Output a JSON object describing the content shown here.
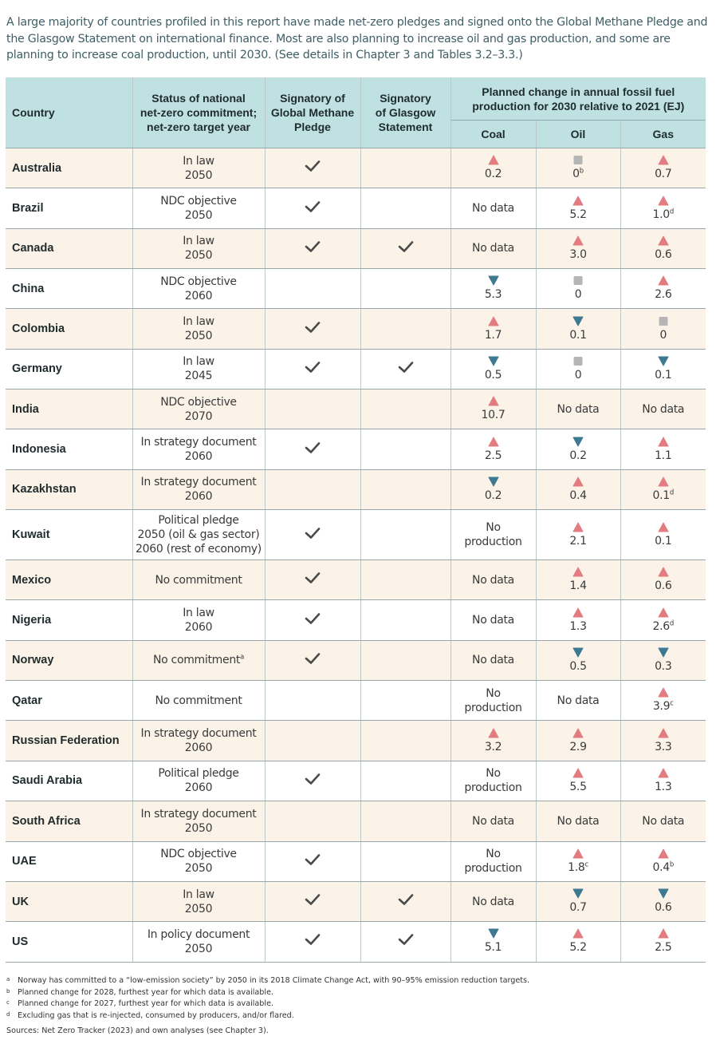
{
  "intro": "A large majority of countries profiled in this report have made net-zero pledges and signed onto the Global Methane Pledge and the Glasgow Statement on international finance. Most are also planning to increase oil and gas production, and some are planning to increase coal production, until 2030. (See details in Chapter 3 and Tables 3.2–3.3.)",
  "headers": {
    "country": "Country",
    "status": [
      "Status of national",
      "net-zero commitment;",
      "net-zero target year"
    ],
    "methane": [
      "Signatory of",
      "Global Methane",
      "Pledge"
    ],
    "glasgow": [
      "Signatory",
      "of Glasgow",
      "Statement"
    ],
    "planned": [
      "Planned change in annual fossil fuel",
      "production for 2030 relative to 2021 (EJ)"
    ],
    "coal": "Coal",
    "oil": "Oil",
    "gas": "Gas"
  },
  "colors": {
    "header_bg": "#bfe1e1",
    "row_alt": "#fbf3e8",
    "increase": "#e27c80",
    "decrease": "#3d7a92",
    "nochange": "#b5b5b5",
    "check": "#4a4a4a"
  },
  "rows": [
    {
      "country": "Australia",
      "status": [
        "In law",
        "2050"
      ],
      "methane": true,
      "glasgow": false,
      "coal": {
        "dir": "up",
        "val": "0.2",
        "sup": ""
      },
      "oil": {
        "dir": "flat",
        "val": "0",
        "sup": "b"
      },
      "gas": {
        "dir": "up",
        "val": "0.7",
        "sup": ""
      }
    },
    {
      "country": "Brazil",
      "status": [
        "NDC objective",
        "2050"
      ],
      "methane": true,
      "glasgow": false,
      "coal": {
        "dir": "none",
        "val": "No data",
        "sup": ""
      },
      "oil": {
        "dir": "up",
        "val": "5.2",
        "sup": ""
      },
      "gas": {
        "dir": "up",
        "val": "1.0",
        "sup": "d"
      }
    },
    {
      "country": "Canada",
      "status": [
        "In law",
        "2050"
      ],
      "methane": true,
      "glasgow": true,
      "coal": {
        "dir": "none",
        "val": "No data",
        "sup": ""
      },
      "oil": {
        "dir": "up",
        "val": "3.0",
        "sup": ""
      },
      "gas": {
        "dir": "up",
        "val": "0.6",
        "sup": ""
      }
    },
    {
      "country": "China",
      "status": [
        "NDC objective",
        "2060"
      ],
      "methane": false,
      "glasgow": false,
      "coal": {
        "dir": "down",
        "val": "5.3",
        "sup": ""
      },
      "oil": {
        "dir": "flat",
        "val": "0",
        "sup": ""
      },
      "gas": {
        "dir": "up",
        "val": "2.6",
        "sup": ""
      }
    },
    {
      "country": "Colombia",
      "status": [
        "In law",
        "2050"
      ],
      "methane": true,
      "glasgow": false,
      "coal": {
        "dir": "up",
        "val": "1.7",
        "sup": ""
      },
      "oil": {
        "dir": "down",
        "val": "0.1",
        "sup": ""
      },
      "gas": {
        "dir": "flat",
        "val": "0",
        "sup": ""
      }
    },
    {
      "country": "Germany",
      "status": [
        "In law",
        "2045"
      ],
      "methane": true,
      "glasgow": true,
      "coal": {
        "dir": "down",
        "val": "0.5",
        "sup": ""
      },
      "oil": {
        "dir": "flat",
        "val": "0",
        "sup": ""
      },
      "gas": {
        "dir": "down",
        "val": "0.1",
        "sup": ""
      }
    },
    {
      "country": "India",
      "status": [
        "NDC objective",
        "2070"
      ],
      "methane": false,
      "glasgow": false,
      "coal": {
        "dir": "up",
        "val": "10.7",
        "sup": ""
      },
      "oil": {
        "dir": "none",
        "val": "No data",
        "sup": ""
      },
      "gas": {
        "dir": "none",
        "val": "No data",
        "sup": ""
      }
    },
    {
      "country": "Indonesia",
      "status": [
        "In strategy document",
        "2060"
      ],
      "methane": true,
      "glasgow": false,
      "coal": {
        "dir": "up",
        "val": "2.5",
        "sup": ""
      },
      "oil": {
        "dir": "down",
        "val": "0.2",
        "sup": ""
      },
      "gas": {
        "dir": "up",
        "val": "1.1",
        "sup": ""
      }
    },
    {
      "country": "Kazakhstan",
      "status": [
        "In strategy document",
        "2060"
      ],
      "methane": false,
      "glasgow": false,
      "coal": {
        "dir": "down",
        "val": "0.2",
        "sup": ""
      },
      "oil": {
        "dir": "up",
        "val": "0.4",
        "sup": ""
      },
      "gas": {
        "dir": "up",
        "val": "0.1",
        "sup": "d"
      }
    },
    {
      "country": "Kuwait",
      "status": [
        "Political pledge",
        "2050 (oil & gas sector)",
        "2060 (rest of economy)"
      ],
      "methane": true,
      "glasgow": false,
      "tall": true,
      "coal": {
        "dir": "none",
        "val": "No production",
        "sup": ""
      },
      "oil": {
        "dir": "up",
        "val": "2.1",
        "sup": ""
      },
      "gas": {
        "dir": "up",
        "val": "0.1",
        "sup": ""
      }
    },
    {
      "country": "Mexico",
      "status": [
        "No commitment"
      ],
      "methane": true,
      "glasgow": false,
      "coal": {
        "dir": "none",
        "val": "No data",
        "sup": ""
      },
      "oil": {
        "dir": "up",
        "val": "1.4",
        "sup": ""
      },
      "gas": {
        "dir": "up",
        "val": "0.6",
        "sup": ""
      }
    },
    {
      "country": "Nigeria",
      "status": [
        "In law",
        "2060"
      ],
      "methane": true,
      "glasgow": false,
      "coal": {
        "dir": "none",
        "val": "No data",
        "sup": ""
      },
      "oil": {
        "dir": "up",
        "val": "1.3",
        "sup": ""
      },
      "gas": {
        "dir": "up",
        "val": "2.6",
        "sup": "d"
      }
    },
    {
      "country": "Norway",
      "status": [
        "No commitment"
      ],
      "status_sup": "a",
      "methane": true,
      "glasgow": false,
      "coal": {
        "dir": "none",
        "val": "No data",
        "sup": ""
      },
      "oil": {
        "dir": "down",
        "val": "0.5",
        "sup": ""
      },
      "gas": {
        "dir": "down",
        "val": "0.3",
        "sup": ""
      }
    },
    {
      "country": "Qatar",
      "status": [
        "No commitment"
      ],
      "methane": false,
      "glasgow": false,
      "coal": {
        "dir": "none",
        "val": "No production",
        "sup": ""
      },
      "oil": {
        "dir": "none",
        "val": "No data",
        "sup": ""
      },
      "gas": {
        "dir": "up",
        "val": "3.9",
        "sup": "c"
      }
    },
    {
      "country": "Russian Federation",
      "status": [
        "In strategy document",
        "2060"
      ],
      "methane": false,
      "glasgow": false,
      "coal": {
        "dir": "up",
        "val": "3.2",
        "sup": ""
      },
      "oil": {
        "dir": "up",
        "val": "2.9",
        "sup": ""
      },
      "gas": {
        "dir": "up",
        "val": "3.3",
        "sup": ""
      }
    },
    {
      "country": "Saudi Arabia",
      "status": [
        "Political pledge",
        "2060"
      ],
      "methane": true,
      "glasgow": false,
      "coal": {
        "dir": "none",
        "val": "No production",
        "sup": ""
      },
      "oil": {
        "dir": "up",
        "val": "5.5",
        "sup": ""
      },
      "gas": {
        "dir": "up",
        "val": "1.3",
        "sup": ""
      }
    },
    {
      "country": "South Africa",
      "status": [
        "In strategy document",
        "2050"
      ],
      "methane": false,
      "glasgow": false,
      "coal": {
        "dir": "none",
        "val": "No data",
        "sup": ""
      },
      "oil": {
        "dir": "none",
        "val": "No data",
        "sup": ""
      },
      "gas": {
        "dir": "none",
        "val": "No data",
        "sup": ""
      }
    },
    {
      "country": "UAE",
      "status": [
        "NDC objective",
        "2050"
      ],
      "methane": true,
      "glasgow": false,
      "coal": {
        "dir": "none",
        "val": "No production",
        "sup": ""
      },
      "oil": {
        "dir": "up",
        "val": "1.8",
        "sup": "c"
      },
      "gas": {
        "dir": "up",
        "val": "0.4",
        "sup": "b"
      }
    },
    {
      "country": "UK",
      "status": [
        "In law",
        "2050"
      ],
      "methane": true,
      "glasgow": true,
      "coal": {
        "dir": "none",
        "val": "No data",
        "sup": ""
      },
      "oil": {
        "dir": "down",
        "val": "0.7",
        "sup": ""
      },
      "gas": {
        "dir": "down",
        "val": "0.6",
        "sup": ""
      }
    },
    {
      "country": "US",
      "status": [
        "In policy document",
        "2050"
      ],
      "methane": true,
      "glasgow": true,
      "coal": {
        "dir": "down",
        "val": "5.1",
        "sup": ""
      },
      "oil": {
        "dir": "up",
        "val": "5.2",
        "sup": ""
      },
      "gas": {
        "dir": "up",
        "val": "2.5",
        "sup": ""
      }
    }
  ],
  "footnotes": [
    {
      "mark": "a",
      "text": "Norway has committed to a “low-emission society” by 2050 in its 2018 Climate Change Act, with 90–95% emission reduction targets."
    },
    {
      "mark": "b",
      "text": "Planned change for 2028, furthest year for which data is available."
    },
    {
      "mark": "c",
      "text": "Planned change for 2027, furthest year for which data is available."
    },
    {
      "mark": "d",
      "text": "Excluding gas that is re-injected, consumed by producers, and/or flared."
    }
  ],
  "sources": "Sources: Net Zero Tracker (2023) and own analyses (see Chapter 3)."
}
